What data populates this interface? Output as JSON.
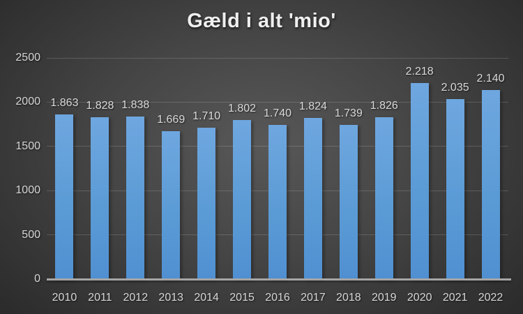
{
  "chart_data": {
    "type": "bar",
    "title": "Gæld i alt 'mio'",
    "categories": [
      "2010",
      "2011",
      "2012",
      "2013",
      "2014",
      "2015",
      "2016",
      "2017",
      "2018",
      "2019",
      "2020",
      "2021",
      "2022"
    ],
    "values": [
      1863,
      1828,
      1838,
      1669,
      1710,
      1802,
      1740,
      1824,
      1739,
      1826,
      2218,
      2035,
      2140
    ],
    "value_labels": [
      "1.863",
      "1.828",
      "1.838",
      "1.669",
      "1.710",
      "1.802",
      "1.740",
      "1.824",
      "1.739",
      "1.826",
      "2.218",
      "2.035",
      "2.140"
    ],
    "xlabel": "",
    "ylabel": "",
    "ylim": [
      0,
      2500
    ],
    "yticks": [
      0,
      500,
      1000,
      1500,
      2000,
      2500
    ],
    "grid": "horizontal",
    "legend": "none",
    "colors": {
      "bar_top": "#6FA7E0",
      "bar_mid": "#5B9BD5",
      "bar_bottom": "#5090D2",
      "background_center": "#585858",
      "background_mid": "#454545",
      "background_edge": "#2A2A2A",
      "axis_line": "#A6A6A6",
      "gridline": "rgba(255,255,255,0.16)",
      "tick_text": "#D6D6D6",
      "label_text": "#D9D9D9",
      "title_text": "#EFEFEF"
    }
  }
}
